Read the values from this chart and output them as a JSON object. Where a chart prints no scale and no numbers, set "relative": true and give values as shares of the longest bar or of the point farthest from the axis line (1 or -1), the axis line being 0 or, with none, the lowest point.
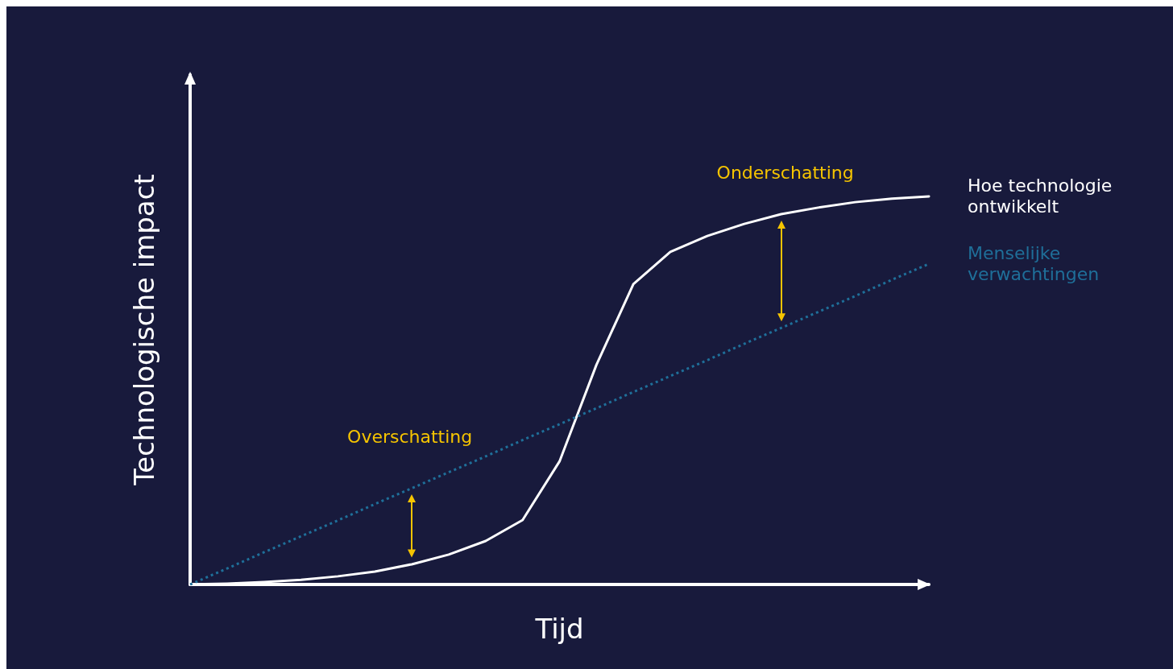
{
  "chart_data": {
    "type": "line",
    "relative": true,
    "xlabel": "Tijd",
    "ylabel": "Technologische impact",
    "legend": false,
    "grid": false,
    "marker": "none",
    "categories": [
      null,
      null,
      null,
      null,
      null,
      null,
      null,
      null,
      null,
      null,
      null,
      null,
      null,
      null,
      null,
      null,
      null,
      null,
      null,
      null,
      null
    ],
    "series": [
      {
        "name": "Hoe technologie ontwikkelt",
        "color": "#ffffff",
        "line_style": "solid",
        "values": [
          0,
          0.002,
          0.006,
          0.012,
          0.021,
          0.033,
          0.052,
          0.077,
          0.112,
          0.166,
          0.317,
          0.566,
          0.774,
          0.857,
          0.898,
          0.929,
          0.954,
          0.971,
          0.985,
          0.994,
          1
        ]
      },
      {
        "name": "Menselijke verwachtingen",
        "color": "#1f6f99",
        "line_style": "dotted",
        "values": [
          0,
          0.041,
          0.083,
          0.124,
          0.165,
          0.207,
          0.248,
          0.289,
          0.33,
          0.372,
          0.413,
          0.454,
          0.496,
          0.537,
          0.578,
          0.62,
          0.661,
          0.702,
          0.743,
          0.785,
          0.826
        ]
      }
    ],
    "annotations": [
      "Overschatting",
      "Onderschatting"
    ]
  }
}
